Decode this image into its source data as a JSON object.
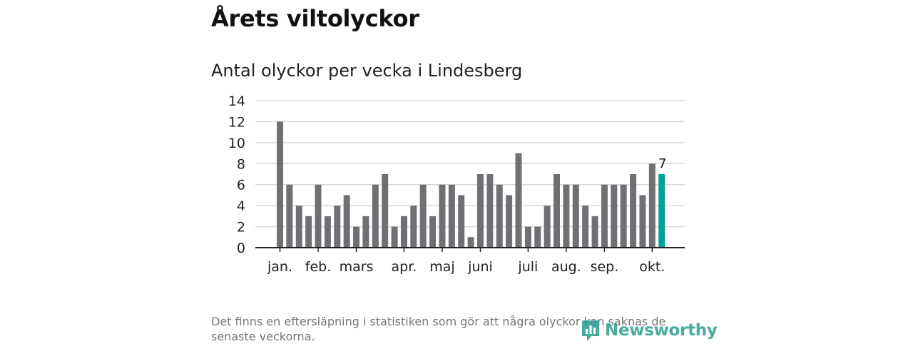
{
  "headline": "Årets viltolyckor",
  "chart_data": {
    "type": "bar",
    "title": "Antal olyckor per vecka i Lindesberg",
    "xlabel": "",
    "ylabel": "",
    "ylim": [
      0,
      14
    ],
    "yticks": [
      0,
      2,
      4,
      6,
      8,
      10,
      12,
      14
    ],
    "grid": true,
    "values": [
      12,
      6,
      4,
      3,
      6,
      3,
      4,
      5,
      2,
      3,
      6,
      7,
      2,
      3,
      4,
      6,
      3,
      6,
      6,
      5,
      1,
      7,
      7,
      6,
      5,
      9,
      2,
      2,
      4,
      7,
      6,
      6,
      4,
      3,
      6,
      6,
      6,
      7,
      5,
      8,
      7
    ],
    "highlight_index": 40,
    "highlight_label": "7",
    "month_labels": [
      {
        "label": "jan.",
        "bar_index": 0
      },
      {
        "label": "feb.",
        "bar_index": 4
      },
      {
        "label": "mars",
        "bar_index": 8
      },
      {
        "label": "apr.",
        "bar_index": 13
      },
      {
        "label": "maj",
        "bar_index": 17
      },
      {
        "label": "juni",
        "bar_index": 21
      },
      {
        "label": "juli",
        "bar_index": 26
      },
      {
        "label": "aug.",
        "bar_index": 30
      },
      {
        "label": "sep.",
        "bar_index": 34
      },
      {
        "label": "okt.",
        "bar_index": 39
      }
    ]
  },
  "footnote": "Det finns en eftersläpning i statistiken som gör att några olyckor kan saknas de senaste veckorna.",
  "logo_text": "Newsworthy",
  "colors": {
    "bar": "#706f74",
    "highlight": "#00a298",
    "grid": "#d9d9d9",
    "axis": "#222222"
  }
}
